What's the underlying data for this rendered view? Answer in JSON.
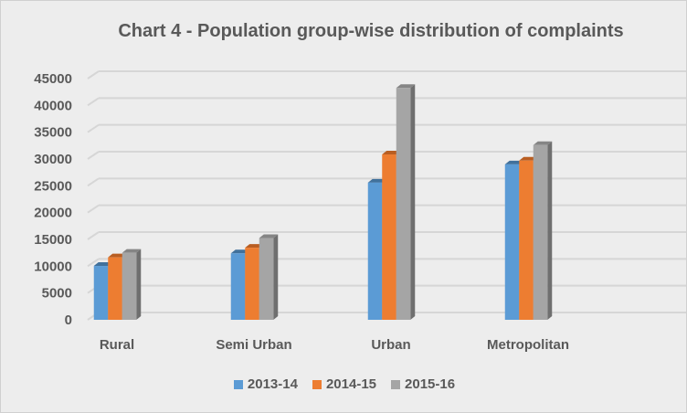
{
  "chart_data": {
    "type": "bar",
    "title": "Chart 4 - Population group-wise distribution of complaints",
    "categories": [
      "Rural",
      "Semi Urban",
      "Urban",
      "Metropolitan"
    ],
    "series": [
      {
        "name": "2013-14",
        "color": "#5b9bd5",
        "values": [
          10050,
          12400,
          25600,
          29000
        ]
      },
      {
        "name": "2014-15",
        "color": "#ed7d31",
        "values": [
          11650,
          13450,
          30850,
          29700
        ]
      },
      {
        "name": "2015-16",
        "color": "#a5a5a5",
        "values": [
          12500,
          15250,
          43250,
          32600
        ]
      }
    ],
    "yticks": [
      "0",
      "5000",
      "10000",
      "15000",
      "20000",
      "25000",
      "30000",
      "35000",
      "40000",
      "45000"
    ],
    "ylim": [
      0,
      45000
    ],
    "xlabel": "",
    "ylabel": "",
    "grid": true,
    "legend_position": "bottom"
  }
}
